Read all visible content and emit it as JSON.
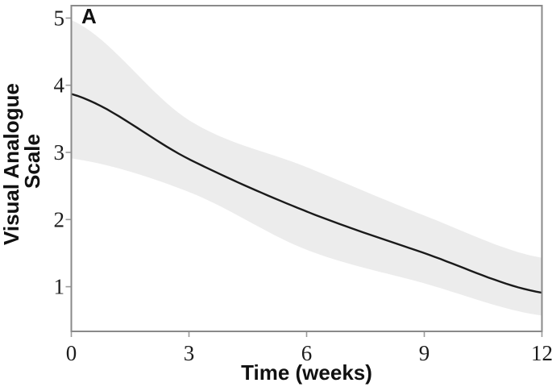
{
  "figure": {
    "panel_label": "A",
    "background_color": "#ffffff"
  },
  "chart_data": {
    "type": "line",
    "title": "",
    "panel_label": "A",
    "xlabel": "Time (weeks)",
    "ylabel": "Visual Analogue Scale",
    "ylabel_lines": [
      "Visual Analogue",
      "Scale"
    ],
    "x": [
      0,
      3,
      6,
      9,
      12
    ],
    "series": [
      {
        "name": "mean_vas",
        "values": [
          3.87,
          2.9,
          2.12,
          1.5,
          0.91
        ]
      },
      {
        "name": "ci_upper",
        "values": [
          4.97,
          3.48,
          2.78,
          2.06,
          1.43
        ]
      },
      {
        "name": "ci_lower",
        "values": [
          2.91,
          2.41,
          1.55,
          1.05,
          0.57
        ]
      }
    ],
    "xticks": [
      0,
      3,
      6,
      9,
      12
    ],
    "yticks": [
      1,
      2,
      3,
      4,
      5
    ],
    "xlim": [
      0,
      12
    ],
    "ylim": [
      0.335,
      5.185
    ],
    "grid": false,
    "legend_position": "none",
    "colors": {
      "line": "#1a1a1a",
      "band": "#ececec",
      "frame": "#8a8a8a",
      "tick": "#9a9a9a",
      "text": "#1c1c1c"
    }
  }
}
